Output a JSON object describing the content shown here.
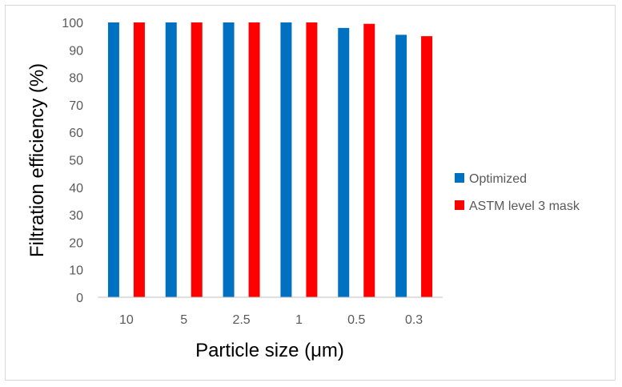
{
  "chart_data": {
    "type": "bar",
    "title": "",
    "xlabel": "Particle size (μm)",
    "ylabel": "Filtration efficiency (%)",
    "categories": [
      "10",
      "5",
      "2.5",
      "1",
      "0.5",
      "0.3"
    ],
    "ylim": [
      0,
      100
    ],
    "yticks": [
      0,
      10,
      20,
      30,
      40,
      50,
      60,
      70,
      80,
      90,
      100
    ],
    "grid": false,
    "legend_position": "right",
    "series": [
      {
        "name": "Optimized",
        "color": "#0070c0",
        "values": [
          100,
          100,
          100,
          100,
          98,
          95.5
        ]
      },
      {
        "name": "ASTM level 3 mask",
        "color": "#ff0000",
        "values": [
          100,
          100,
          100,
          100,
          99.5,
          95
        ]
      }
    ]
  }
}
